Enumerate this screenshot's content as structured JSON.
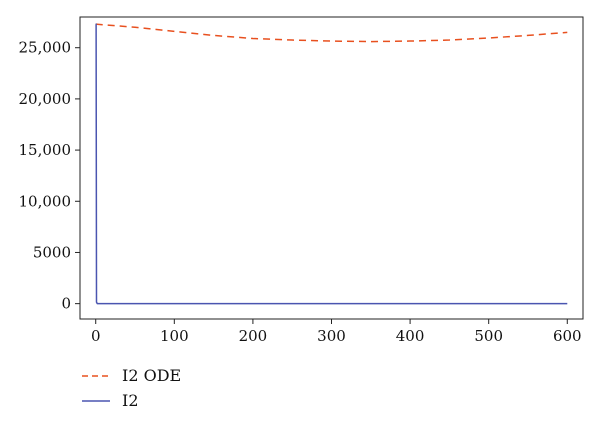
{
  "chart_data": {
    "type": "line",
    "title": "",
    "xlabel": "",
    "ylabel": "",
    "xlim": [
      -20,
      620
    ],
    "ylim": [
      -1500,
      28000
    ],
    "x_ticks": [
      0,
      100,
      200,
      300,
      400,
      500,
      600
    ],
    "y_ticks": [
      0,
      5000,
      10000,
      15000,
      20000,
      25000
    ],
    "x_tick_labels": [
      "0",
      "100",
      "200",
      "300",
      "400",
      "500",
      "600"
    ],
    "y_tick_labels": [
      "0",
      "5000",
      "10,000",
      "15,000",
      "20,000",
      "25,000"
    ],
    "grid": false,
    "legend_position": "bottom-left",
    "series": [
      {
        "name": "I2 ODE",
        "color": "#e8501f",
        "style": "dashed",
        "x": [
          0,
          50,
          100,
          150,
          200,
          250,
          300,
          350,
          400,
          450,
          500,
          550,
          600
        ],
        "y": [
          27300,
          27000,
          26600,
          26200,
          25900,
          25750,
          25650,
          25600,
          25650,
          25750,
          25950,
          26200,
          26500
        ]
      },
      {
        "name": "I2",
        "color": "#4a55b0",
        "style": "solid",
        "x": [
          0,
          0.5,
          1,
          2,
          100,
          200,
          300,
          400,
          500,
          600
        ],
        "y": [
          27300,
          27300,
          150,
          0,
          0,
          0,
          0,
          0,
          0,
          0
        ]
      }
    ]
  }
}
